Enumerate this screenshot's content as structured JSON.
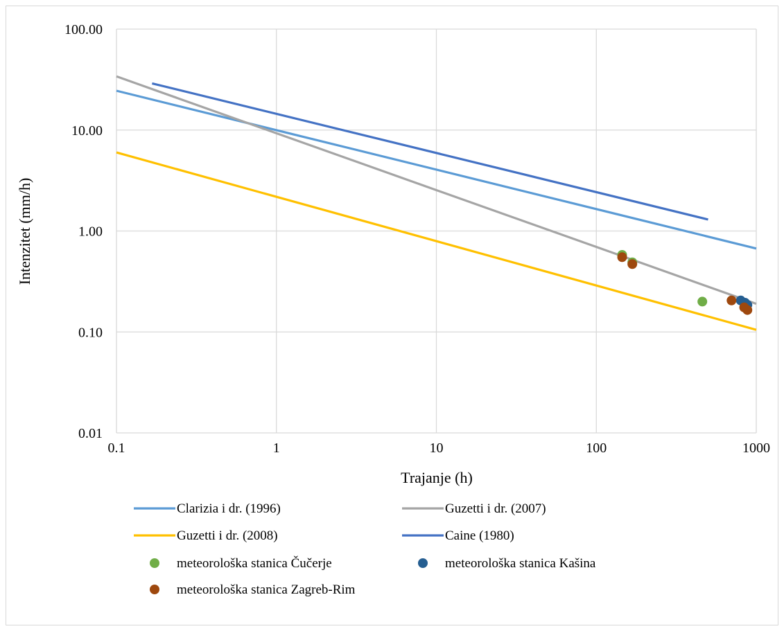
{
  "chart_data": {
    "type": "scatter",
    "xlabel": "Trajanje (h)",
    "ylabel": "Intenzitet (mm/h)",
    "xscale": "log",
    "yscale": "log",
    "xlim": [
      0.1,
      1000
    ],
    "ylim": [
      0.01,
      100
    ],
    "x_tick_labels": [
      "0.1",
      "1",
      "10",
      "100",
      "1000"
    ],
    "x_tick_values": [
      0.1,
      1,
      10,
      100,
      1000
    ],
    "y_tick_labels": [
      "0.01",
      "0.10",
      "1.00",
      "10.00",
      "100.00"
    ],
    "y_tick_values": [
      0.01,
      0.1,
      1,
      10,
      100
    ],
    "grid": true,
    "legend_position": "bottom",
    "lines": [
      {
        "name": "Clarizia i dr. (1996)",
        "color": "#5b9bd5",
        "x": [
          0.1,
          1000
        ],
        "y": [
          24.5,
          0.67
        ]
      },
      {
        "name": "Guzetti i dr. (2007)",
        "color": "#a5a5a5",
        "x": [
          0.1,
          1000
        ],
        "y": [
          34.0,
          0.19
        ]
      },
      {
        "name": "Guzetti i dr. (2008)",
        "color": "#ffc000",
        "x": [
          0.1,
          1000
        ],
        "y": [
          6.0,
          0.105
        ]
      },
      {
        "name": "Caine (1980)",
        "color": "#4472c4",
        "x": [
          0.167,
          500
        ],
        "y": [
          29.0,
          1.3
        ]
      }
    ],
    "points": [
      {
        "name": "meteorološka stanica Čučerje",
        "color": "#70ad47",
        "x": [
          145,
          168,
          460
        ],
        "y": [
          0.58,
          0.49,
          0.2
        ]
      },
      {
        "name": "meteorološka stanica Kašina",
        "color": "#255e91",
        "x": [
          800,
          850,
          880
        ],
        "y": [
          0.205,
          0.195,
          0.185
        ]
      },
      {
        "name": "meteorološka stanica Zagreb-Rim",
        "color": "#9e480e",
        "x": [
          145,
          168,
          700,
          840,
          880
        ],
        "y": [
          0.55,
          0.47,
          0.205,
          0.175,
          0.165
        ]
      }
    ]
  }
}
